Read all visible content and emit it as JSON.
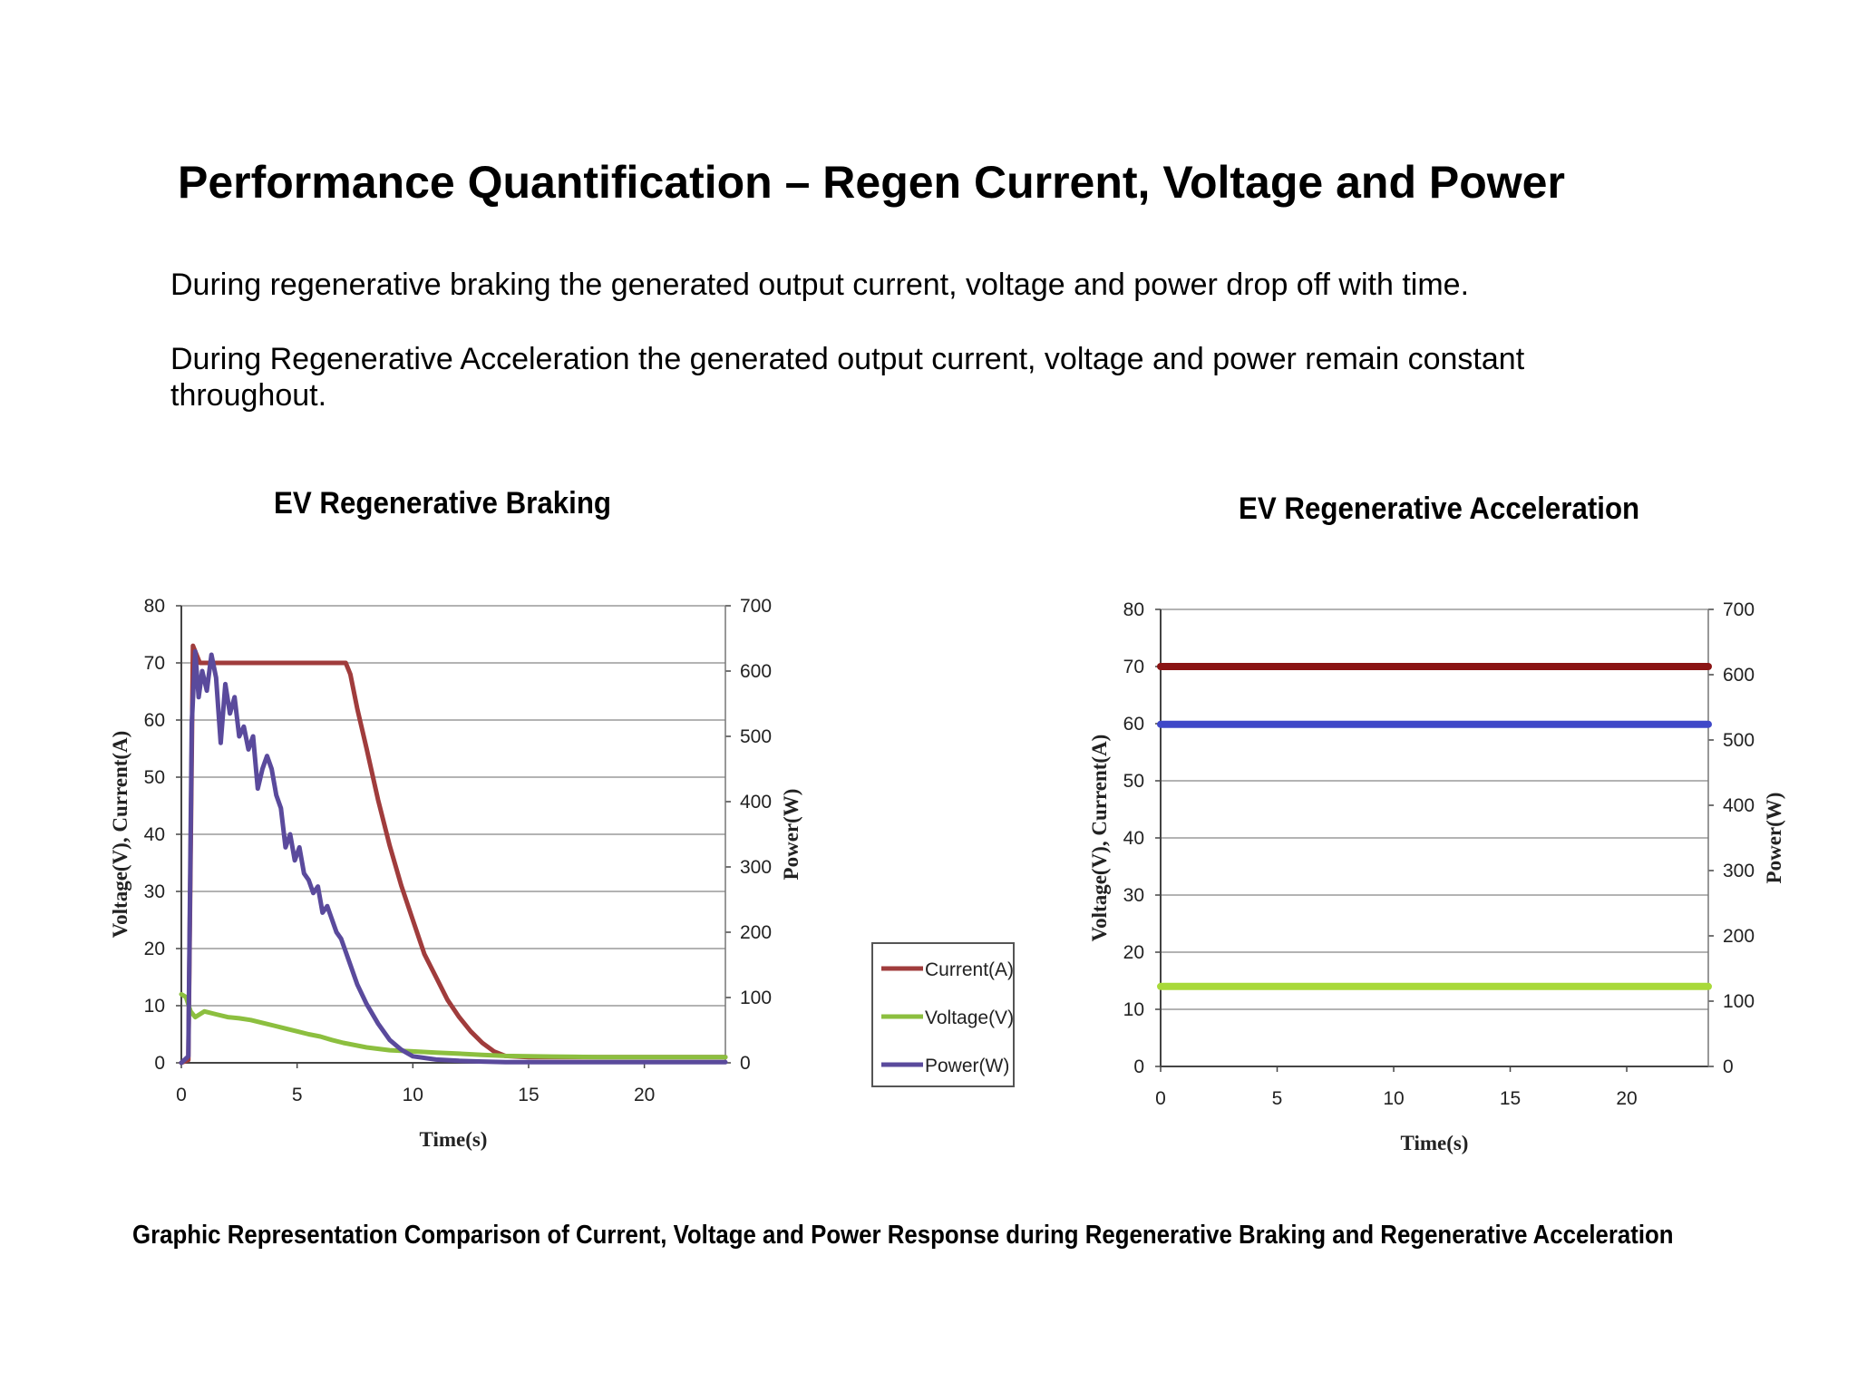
{
  "slide": {
    "title": "Performance Quantification – Regen Current, Voltage and Power",
    "paragraphs": [
      "During regenerative braking the generated output current, voltage and power drop off with time.",
      "During Regenerative Acceleration the generated output current, voltage and power remain constant throughout."
    ],
    "caption": "Graphic Representation Comparison of Current, Voltage and Power Response during Regenerative Braking and Regenerative Acceleration"
  },
  "colors": {
    "current": "#a03c3c",
    "voltage": "#8cbf3f",
    "power": "#5a4a9c"
  },
  "chart_data": [
    {
      "type": "line",
      "title": "EV Regenerative Braking",
      "xlabel": "Time(s)",
      "ylabel": "Voltage(V),  Current(A)",
      "y2label": "Power(W)",
      "xlim": [
        0,
        23.5
      ],
      "ylim": [
        0,
        80
      ],
      "y2lim": [
        0,
        700
      ],
      "xticks": [
        0,
        5,
        10,
        15,
        20
      ],
      "yticks": [
        0,
        10,
        20,
        30,
        40,
        50,
        60,
        70,
        80
      ],
      "y2ticks": [
        0,
        100,
        200,
        300,
        400,
        500,
        600,
        700
      ],
      "grid": true,
      "legend": {
        "position": "right",
        "entries": [
          "Current(A)",
          "Voltage(V)",
          "Power(W)"
        ]
      },
      "series": [
        {
          "name": "Current(A)",
          "color": "#a03c3c",
          "axis": "left",
          "x": [
            0,
            0.3,
            0.5,
            0.8,
            1.2,
            2,
            4,
            6,
            7.1,
            7.3,
            7.6,
            8,
            8.5,
            9,
            9.5,
            10,
            10.5,
            11,
            11.5,
            12,
            12.5,
            13,
            13.5,
            14,
            15,
            17,
            20,
            23.5
          ],
          "y": [
            0,
            0.5,
            73,
            70,
            70,
            70,
            70,
            70,
            70,
            68,
            62,
            55,
            46,
            38,
            31,
            25,
            19,
            15,
            11,
            8,
            5.5,
            3.5,
            2,
            1.2,
            1,
            1,
            1,
            1
          ]
        },
        {
          "name": "Voltage(V)",
          "color": "#8cbf3f",
          "axis": "left",
          "x": [
            0,
            0.2,
            0.4,
            0.6,
            1,
            1.5,
            2,
            2.5,
            3,
            3.5,
            4,
            4.5,
            5,
            5.5,
            6,
            6.5,
            7,
            8,
            9,
            10,
            11,
            12,
            13,
            14,
            16,
            18,
            20,
            23.5
          ],
          "y": [
            12,
            11.5,
            9,
            8,
            9,
            8.5,
            8,
            7.8,
            7.5,
            7,
            6.5,
            6,
            5.5,
            5,
            4.6,
            4,
            3.5,
            2.7,
            2.2,
            2,
            1.8,
            1.6,
            1.4,
            1.2,
            1.1,
            1,
            1,
            1
          ]
        },
        {
          "name": "Power(W)",
          "color": "#5a4a9c",
          "axis": "right",
          "x": [
            0,
            0.3,
            0.45,
            0.6,
            0.75,
            0.9,
            1.1,
            1.3,
            1.5,
            1.7,
            1.9,
            2.1,
            2.3,
            2.5,
            2.7,
            2.9,
            3.1,
            3.3,
            3.5,
            3.7,
            3.9,
            4.1,
            4.3,
            4.5,
            4.7,
            4.9,
            5.1,
            5.3,
            5.5,
            5.7,
            5.9,
            6.1,
            6.3,
            6.5,
            6.7,
            6.9,
            7.1,
            7.3,
            7.6,
            8,
            8.5,
            9,
            9.5,
            10,
            11,
            12,
            13,
            14,
            15,
            18,
            23.5
          ],
          "y": [
            0,
            10,
            520,
            630,
            560,
            600,
            570,
            625,
            590,
            490,
            580,
            535,
            560,
            500,
            515,
            480,
            500,
            420,
            450,
            470,
            450,
            410,
            390,
            330,
            350,
            310,
            330,
            290,
            280,
            260,
            270,
            230,
            240,
            220,
            200,
            190,
            170,
            150,
            120,
            90,
            60,
            35,
            20,
            10,
            5,
            3,
            2,
            1,
            1,
            1,
            1
          ]
        }
      ]
    },
    {
      "type": "line",
      "title": "EV Regenerative Acceleration",
      "xlabel": "Time(s)",
      "ylabel": "Voltage(V),  Current(A)",
      "y2label": "Power(W)",
      "xlim": [
        0,
        23.5
      ],
      "ylim": [
        0,
        80
      ],
      "y2lim": [
        0,
        700
      ],
      "xticks": [
        0,
        5,
        10,
        15,
        20
      ],
      "yticks": [
        0,
        10,
        20,
        30,
        40,
        50,
        60,
        70,
        80
      ],
      "y2ticks": [
        0,
        100,
        200,
        300,
        400,
        500,
        600,
        700
      ],
      "grid": true,
      "series": [
        {
          "name": "Current(A)",
          "color": "#8a1414",
          "axis": "left",
          "x": [
            0,
            23.5
          ],
          "y": [
            70,
            70
          ]
        },
        {
          "name": "Power(W)",
          "color": "#3f48c8",
          "axis": "right",
          "x": [
            0,
            23.5
          ],
          "y": [
            524,
            524
          ]
        },
        {
          "name": "Voltage(V)",
          "color": "#a8d93a",
          "axis": "left",
          "x": [
            0,
            23.5
          ],
          "y": [
            14,
            14
          ]
        }
      ]
    }
  ]
}
